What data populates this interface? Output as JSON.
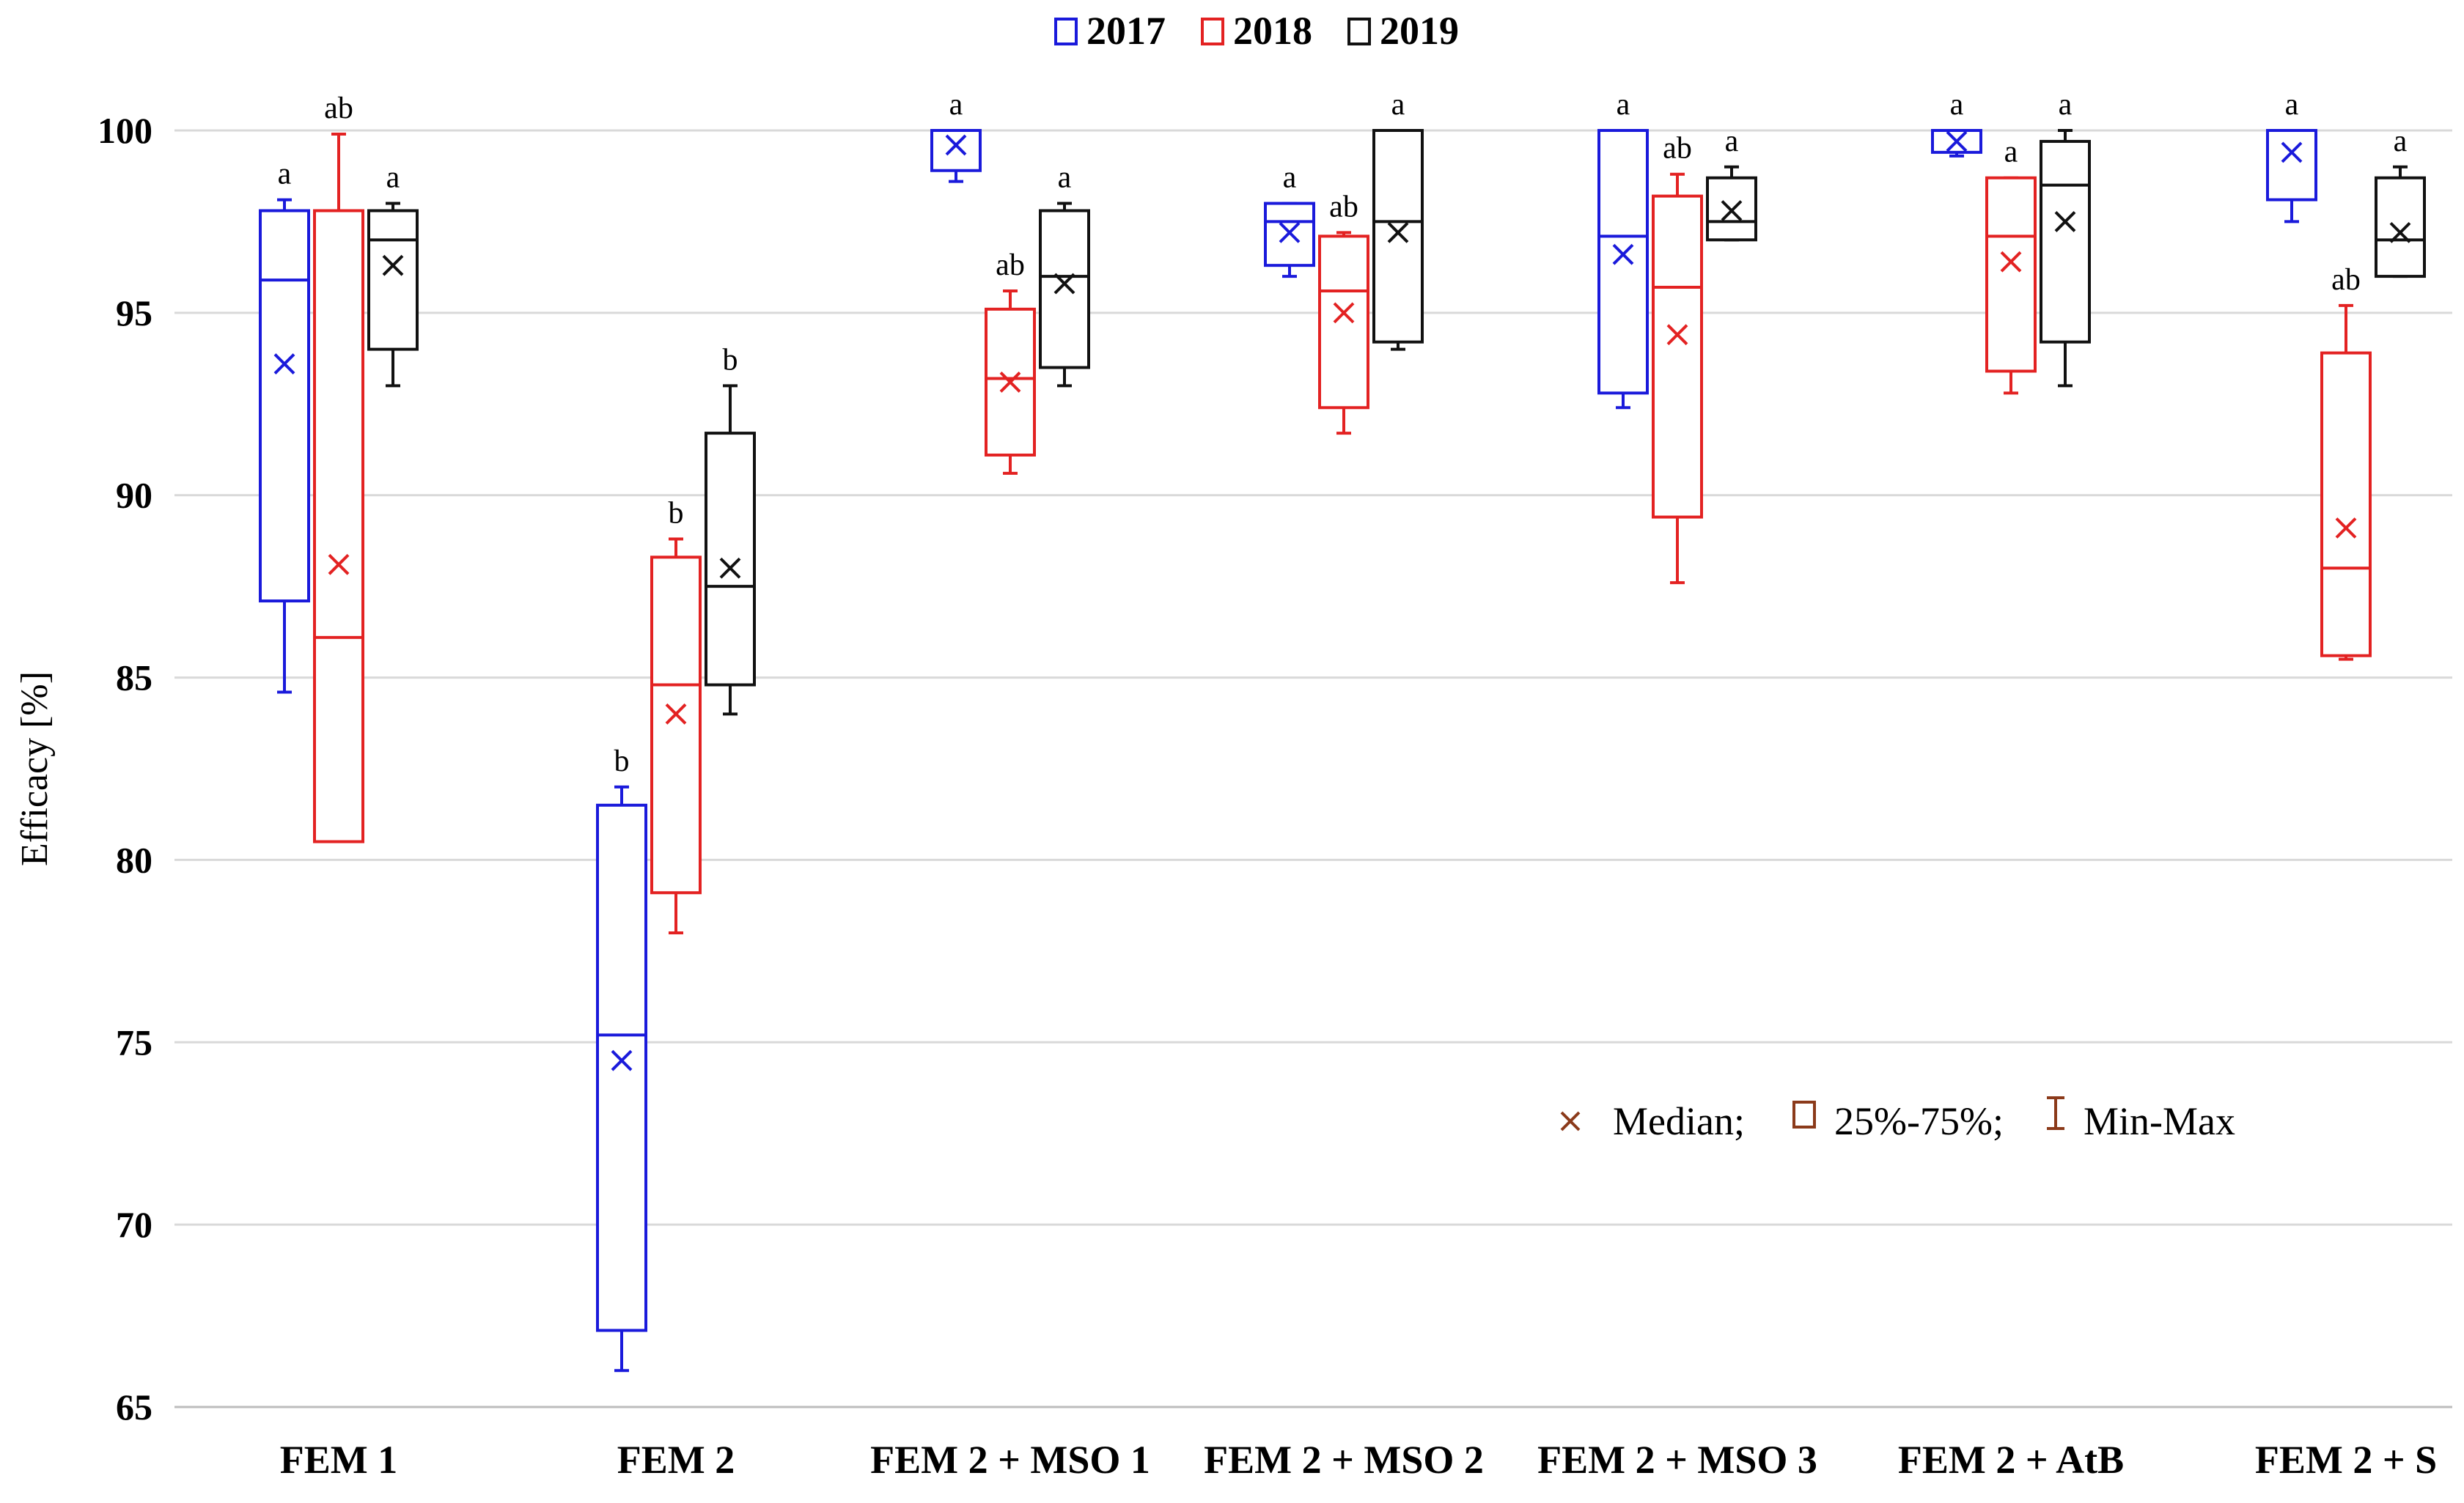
{
  "chart_data": {
    "type": "box",
    "title": "",
    "xlabel": "",
    "ylabel": "Efficacy [%]",
    "ylim": [
      65,
      100
    ],
    "yticks": [
      65,
      70,
      75,
      80,
      85,
      90,
      95,
      100
    ],
    "grid": true,
    "legend_position": "top-center",
    "categories": [
      "FEM 1",
      "FEM 2",
      "FEM 2 + MSO 1",
      "FEM 2 + MSO 2",
      "FEM 2 + MSO 3",
      "FEM 2 + AtB",
      "FEM 2 + S"
    ],
    "series": [
      {
        "name": "2017",
        "color": "#1a1adb",
        "boxes": [
          {
            "min": 84.6,
            "q1": 87.1,
            "median": 95.9,
            "q3": 97.8,
            "max": 98.1,
            "mean": 93.6,
            "label": "a"
          },
          {
            "min": 66.0,
            "q1": 67.1,
            "median": 75.2,
            "q3": 81.5,
            "max": 82.0,
            "mean": 74.5,
            "label": "b"
          },
          {
            "min": 98.6,
            "q1": 98.9,
            "median": 100.0,
            "q3": 100.0,
            "max": 100.0,
            "mean": 99.6,
            "label": "a"
          },
          {
            "min": 96.0,
            "q1": 96.3,
            "median": 97.5,
            "q3": 98.0,
            "max": 98.0,
            "mean": 97.2,
            "label": "a"
          },
          {
            "min": 92.4,
            "q1": 92.8,
            "median": 97.1,
            "q3": 100.0,
            "max": 100.0,
            "mean": 96.6,
            "label": "a"
          },
          {
            "min": 99.3,
            "q1": 99.4,
            "median": 100.0,
            "q3": 100.0,
            "max": 100.0,
            "mean": 99.7,
            "label": "a"
          },
          {
            "min": 97.5,
            "q1": 98.1,
            "median": 100.0,
            "q3": 100.0,
            "max": 100.0,
            "mean": 99.4,
            "label": "a"
          }
        ]
      },
      {
        "name": "2018",
        "color": "#e32222",
        "boxes": [
          {
            "min": 80.5,
            "q1": 80.5,
            "median": 86.1,
            "q3": 97.8,
            "max": 99.9,
            "mean": 88.1,
            "label": "ab"
          },
          {
            "min": 78.0,
            "q1": 79.1,
            "median": 84.8,
            "q3": 88.3,
            "max": 88.8,
            "mean": 84.0,
            "label": "b"
          },
          {
            "min": 90.6,
            "q1": 91.1,
            "median": 93.2,
            "q3": 95.1,
            "max": 95.6,
            "mean": 93.1,
            "label": "ab"
          },
          {
            "min": 91.7,
            "q1": 92.4,
            "median": 95.6,
            "q3": 97.1,
            "max": 97.2,
            "mean": 95.0,
            "label": "ab"
          },
          {
            "min": 87.6,
            "q1": 89.4,
            "median": 95.7,
            "q3": 98.2,
            "max": 98.8,
            "mean": 94.4,
            "label": "ab"
          },
          {
            "min": 92.8,
            "q1": 93.4,
            "median": 97.1,
            "q3": 98.7,
            "max": 98.7,
            "mean": 96.4,
            "label": "a"
          },
          {
            "min": 85.5,
            "q1": 85.6,
            "median": 88.0,
            "q3": 93.9,
            "max": 95.2,
            "mean": 89.1,
            "label": "ab"
          }
        ]
      },
      {
        "name": "2019",
        "color": "#111111",
        "boxes": [
          {
            "min": 93.0,
            "q1": 94.0,
            "median": 97.0,
            "q3": 97.8,
            "max": 98.0,
            "mean": 96.3,
            "label": "a"
          },
          {
            "min": 84.0,
            "q1": 84.8,
            "median": 87.5,
            "q3": 91.7,
            "max": 93.0,
            "mean": 88.0,
            "label": "b"
          },
          {
            "min": 93.0,
            "q1": 93.5,
            "median": 96.0,
            "q3": 97.8,
            "max": 98.0,
            "mean": 95.8,
            "label": "a"
          },
          {
            "min": 94.0,
            "q1": 94.2,
            "median": 97.5,
            "q3": 100.0,
            "max": 100.0,
            "mean": 97.2,
            "label": "a"
          },
          {
            "min": 97.0,
            "q1": 97.0,
            "median": 97.5,
            "q3": 98.7,
            "max": 99.0,
            "mean": 97.8,
            "label": "a"
          },
          {
            "min": 93.0,
            "q1": 94.2,
            "median": 98.5,
            "q3": 99.7,
            "max": 100.0,
            "mean": 97.5,
            "label": "a"
          },
          {
            "min": 96.0,
            "q1": 96.0,
            "median": 97.0,
            "q3": 98.7,
            "max": 99.0,
            "mean": 97.2,
            "label": "a"
          }
        ]
      }
    ],
    "annotation": {
      "median_label": "Median;",
      "iqr_label": "25%-75%;",
      "range_label": "Min-Max",
      "color": "#8b3a1a"
    }
  }
}
